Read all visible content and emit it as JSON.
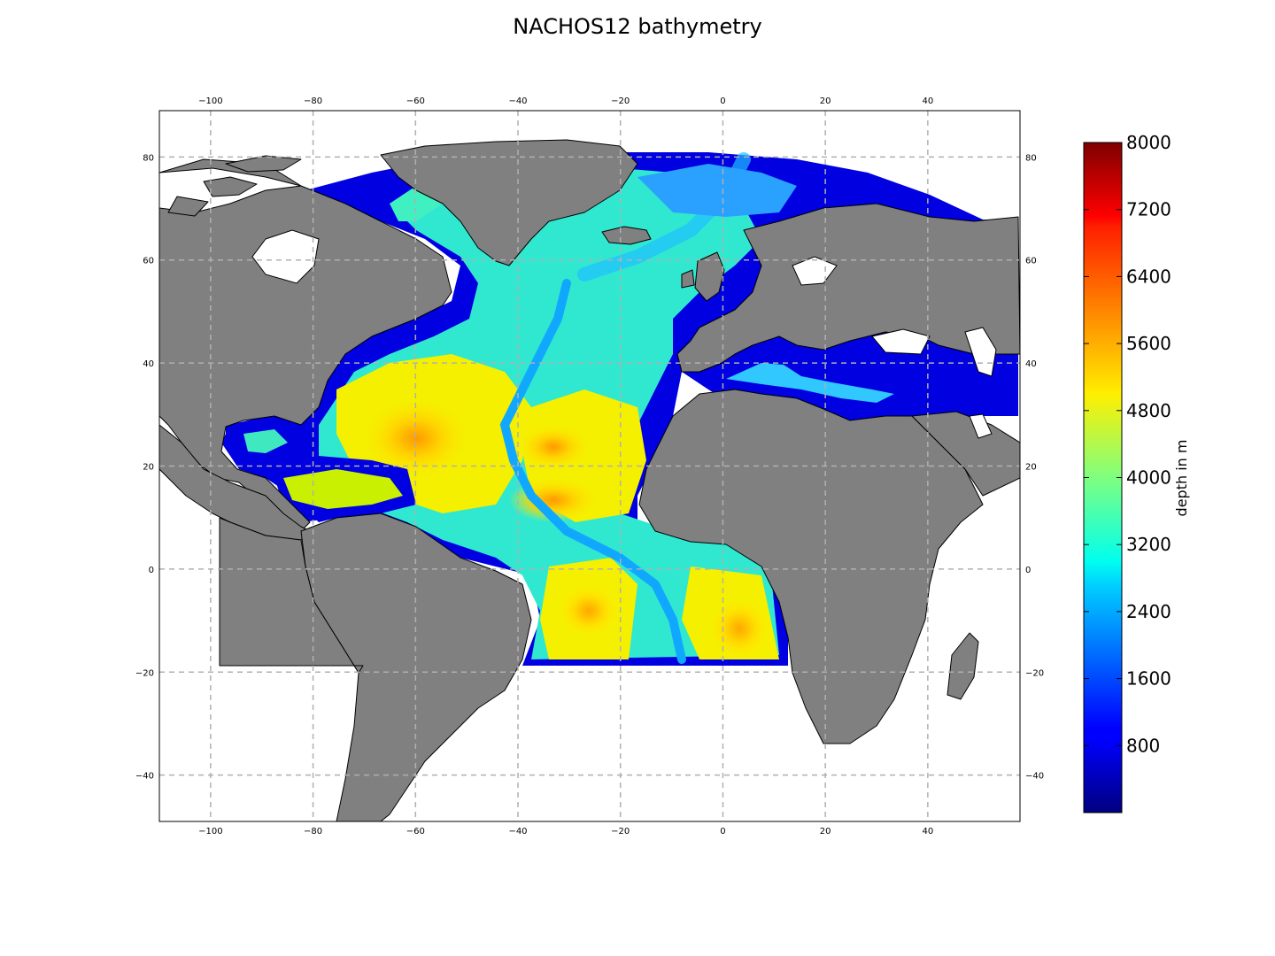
{
  "title": "NACHOS12 bathymetry",
  "map": {
    "lon_range": [
      -110,
      58
    ],
    "lat_range": [
      -49,
      89
    ],
    "grid": true,
    "projection": "cylindrical",
    "lon_ticks": [
      -100,
      -80,
      -60,
      -40,
      -20,
      0,
      20,
      40
    ],
    "lat_ticks": [
      -40,
      -20,
      0,
      20,
      40,
      60,
      80
    ],
    "lon_tick_labels": [
      "−100",
      "−80",
      "−60",
      "−40",
      "−20",
      "0",
      "20",
      "40"
    ],
    "lat_tick_labels": [
      "−40",
      "−20",
      "0",
      "20",
      "40",
      "60",
      "80"
    ],
    "land_color": "#808080",
    "domain_south_lat": -19,
    "domain_west_lon": -98
  },
  "colorbar": {
    "label": "depth in m",
    "colormap": "jet",
    "range": [
      0,
      8000
    ],
    "ticks": [
      800,
      1600,
      2400,
      3200,
      4000,
      4800,
      5600,
      6400,
      7200,
      8000
    ],
    "tick_labels": [
      "800",
      "1600",
      "2400",
      "3200",
      "4000",
      "4800",
      "5600",
      "6400",
      "7200",
      "8000"
    ]
  }
}
